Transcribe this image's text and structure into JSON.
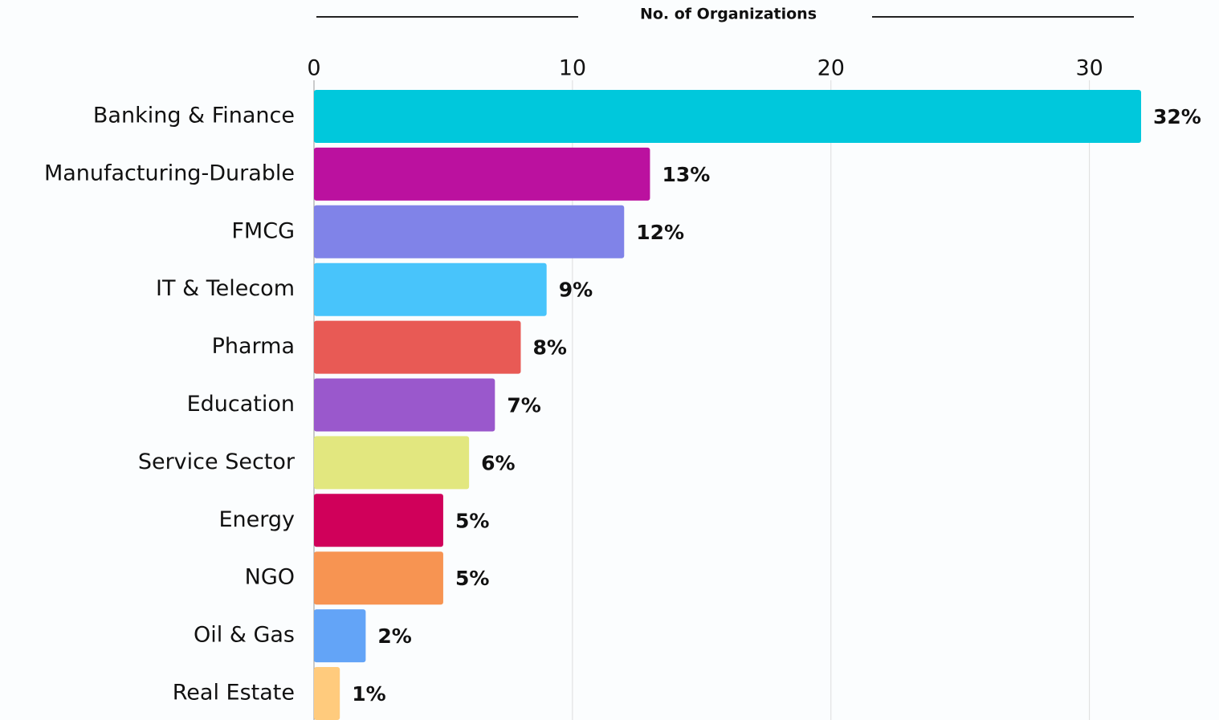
{
  "chart_data": {
    "type": "bar",
    "orientation": "horizontal",
    "title": "No. of Organizations",
    "categories": [
      "Banking & Finance",
      "Manufacturing-Durable",
      "FMCG",
      "IT & Telecom",
      "Pharma",
      "Education",
      "Service Sector",
      "Energy",
      "NGO",
      "Oil & Gas",
      "Real Estate"
    ],
    "values": [
      32,
      13,
      12,
      9,
      8,
      7,
      6,
      5,
      5,
      2,
      1
    ],
    "value_labels": [
      "32%",
      "13%",
      "12%",
      "9%",
      "8%",
      "7%",
      "6%",
      "5%",
      "5%",
      "2%",
      "1%"
    ],
    "colors": [
      "#00c8dc",
      "#bb119f",
      "#8083e8",
      "#48c4fb",
      "#e85a55",
      "#9a58cc",
      "#e2e77f",
      "#d0005a",
      "#f79452",
      "#63a4f7",
      "#ffcb7d"
    ],
    "xlim": [
      0,
      32
    ],
    "xticks": [
      0,
      10,
      20,
      30
    ],
    "grid": true
  }
}
